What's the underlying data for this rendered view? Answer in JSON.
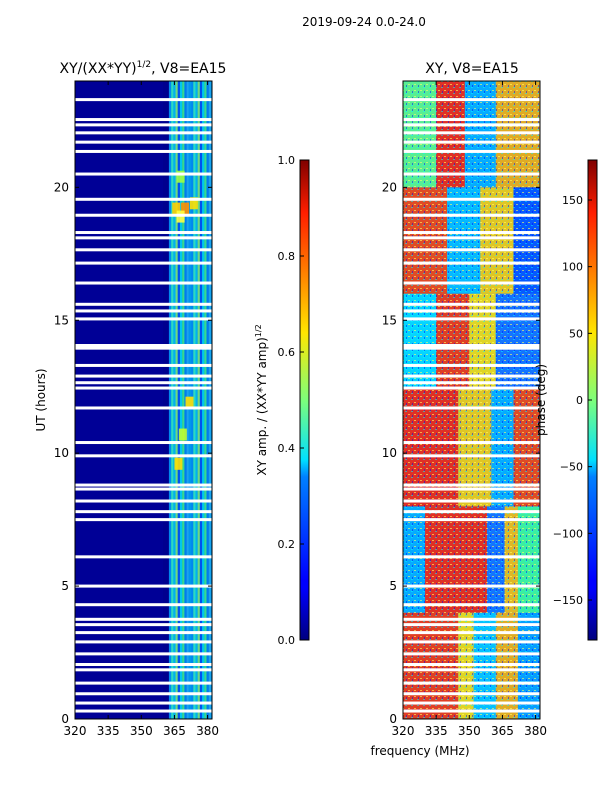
{
  "suptitle": "2019-09-24 0.0-24.0",
  "xlabel": "frequency (MHz)",
  "chart_data": [
    {
      "type": "heatmap",
      "title_main": "XY/(XX*YY)",
      "title_sup": "1/2",
      "title_rest": ", V8=EA15",
      "xlabel": "frequency (MHz)",
      "ylabel": "UT (hours)",
      "xlim": [
        320,
        382
      ],
      "ylim": [
        0,
        24
      ],
      "xticks": [
        "320",
        "335",
        "350",
        "365",
        "380"
      ],
      "xtick_values": [
        320,
        335,
        350,
        365,
        380
      ],
      "yticks": [
        "0",
        "5",
        "10",
        "15",
        "20"
      ],
      "ytick_values": [
        0,
        5,
        10,
        15,
        20
      ],
      "colorbar": {
        "label_main": "XY amp. / (XX*YY amp)",
        "label_sup": "1/2",
        "range": [
          0,
          1
        ],
        "ticks": [
          "0.0",
          "0.2",
          "0.4",
          "0.6",
          "0.8",
          "1.0"
        ],
        "tick_values": [
          0,
          0.2,
          0.4,
          0.6,
          0.8,
          1.0
        ],
        "colormap": "jet"
      }
    },
    {
      "type": "heatmap",
      "title": "XY, V8=EA15",
      "xlabel": "frequency (MHz)",
      "ylabel": "",
      "xlim": [
        320,
        382
      ],
      "ylim": [
        0,
        24
      ],
      "xticks": [
        "320",
        "335",
        "350",
        "365",
        "380"
      ],
      "xtick_values": [
        320,
        335,
        350,
        365,
        380
      ],
      "yticks": [
        "0",
        "5",
        "10",
        "15",
        "20"
      ],
      "ytick_values": [
        0,
        5,
        10,
        15,
        20
      ],
      "colorbar": {
        "label": "phase (deg)",
        "range": [
          -180,
          180
        ],
        "ticks": [
          "−150",
          "−100",
          "−50",
          "0",
          "50",
          "100",
          "150"
        ],
        "tick_values": [
          -150,
          -100,
          -50,
          0,
          50,
          100,
          150
        ],
        "colormap": "jet"
      }
    }
  ],
  "flag_rows_hours": [
    0.3,
    0.6,
    0.95,
    1.35,
    1.85,
    2.05,
    2.45,
    2.9,
    3.25,
    3.55,
    3.75,
    4.3,
    5.0,
    6.1,
    7.5,
    7.8,
    8.2,
    8.65,
    8.8,
    9.9,
    10.4,
    11.7,
    12.45,
    12.65,
    12.9,
    13.3,
    13.95,
    14.05,
    15.05,
    15.35,
    15.6,
    16.4,
    17.15,
    17.65,
    18.1,
    18.3,
    18.95,
    19.55,
    20.5,
    21.35,
    21.7,
    22.05,
    22.35,
    22.55,
    23.3
  ]
}
